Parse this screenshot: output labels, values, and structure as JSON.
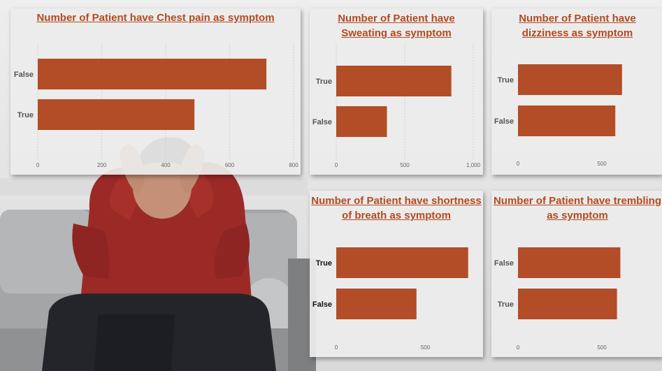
{
  "colors": {
    "bar": "#b24d28",
    "title": "#b34a1f"
  },
  "chart_data": [
    {
      "id": "chest-pain",
      "type": "bar",
      "orientation": "horizontal",
      "title": "Number of Patient have Chest pain as symptom",
      "categories": [
        "False",
        "True"
      ],
      "values": [
        715,
        490
      ],
      "xlim": [
        0,
        800
      ],
      "ticks": [
        0,
        200,
        400,
        600,
        800
      ],
      "tick_labels": [
        "0",
        "200",
        "400",
        "600",
        "800"
      ],
      "grid": true
    },
    {
      "id": "sweating",
      "type": "bar",
      "orientation": "horizontal",
      "title": "Number of Patient have Sweating as symptom",
      "categories": [
        "True",
        "False"
      ],
      "values": [
        840,
        370
      ],
      "xlim": [
        0,
        1000
      ],
      "ticks": [
        0,
        500,
        1000
      ],
      "tick_labels": [
        "0",
        "500",
        "1,000"
      ],
      "grid": true
    },
    {
      "id": "dizziness",
      "type": "bar",
      "orientation": "horizontal",
      "title": "Number of Patient have dizziness as symptom",
      "categories": [
        "True",
        "False"
      ],
      "values": [
        620,
        580
      ],
      "xlim": [
        0,
        750
      ],
      "ticks": [
        0,
        500
      ],
      "tick_labels": [
        "0",
        "500"
      ],
      "grid": false
    },
    {
      "id": "shortness-of-breath",
      "type": "bar",
      "orientation": "horizontal",
      "title": "Number of Patient have shortness of breath as symptom",
      "categories": [
        "True",
        "False"
      ],
      "values": [
        740,
        450
      ],
      "xlim": [
        0,
        800
      ],
      "ticks": [
        0,
        500
      ],
      "tick_labels": [
        "0",
        "500"
      ],
      "grid": false
    },
    {
      "id": "trembling",
      "type": "bar",
      "orientation": "horizontal",
      "title": "Number of Patient have trembling as symptom",
      "categories": [
        "False",
        "True"
      ],
      "values": [
        610,
        590
      ],
      "xlim": [
        0,
        750
      ],
      "ticks": [
        0,
        500
      ],
      "tick_labels": [
        "0",
        "500"
      ],
      "grid": false
    }
  ]
}
